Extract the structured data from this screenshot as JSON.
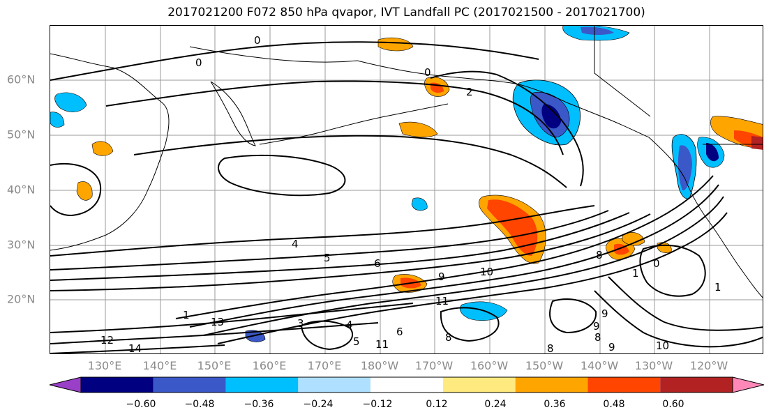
{
  "title": "2017021200 F072 850 hPa qvapor, IVT Landfall PC (2017021500 - 2017021700)",
  "lat_labels": [
    "60°N",
    "50°N",
    "40°N",
    "30°N",
    "20°N"
  ],
  "lon_labels": [
    "130°E",
    "140°E",
    "150°E",
    "160°E",
    "170°E",
    "180°W",
    "170°W",
    "160°W",
    "150°W",
    "140°W",
    "130°W",
    "120°W"
  ],
  "colorbar": {
    "colors": [
      "#9a3fc8",
      "#000080",
      "#3a58c8",
      "#00bfff",
      "#b0e0ff",
      "#ffffff",
      "#ffea80",
      "#ffa500",
      "#ff4500",
      "#b22222",
      "#ff88b8"
    ],
    "ticks": [
      "−0.60",
      "−0.48",
      "−0.36",
      "−0.24",
      "−0.12",
      "0.12",
      "0.24",
      "0.36",
      "0.48",
      "0.60"
    ]
  },
  "contour_labels": [
    "0",
    "0",
    "2",
    "4",
    "5",
    "6",
    "10",
    "9",
    "11",
    "12",
    "13",
    "14",
    "1",
    "8",
    "8",
    "9",
    "9",
    "9",
    "10",
    "3",
    "4",
    "5",
    "6",
    "11",
    "8",
    "1",
    "0",
    "1",
    "0",
    "8"
  ]
}
